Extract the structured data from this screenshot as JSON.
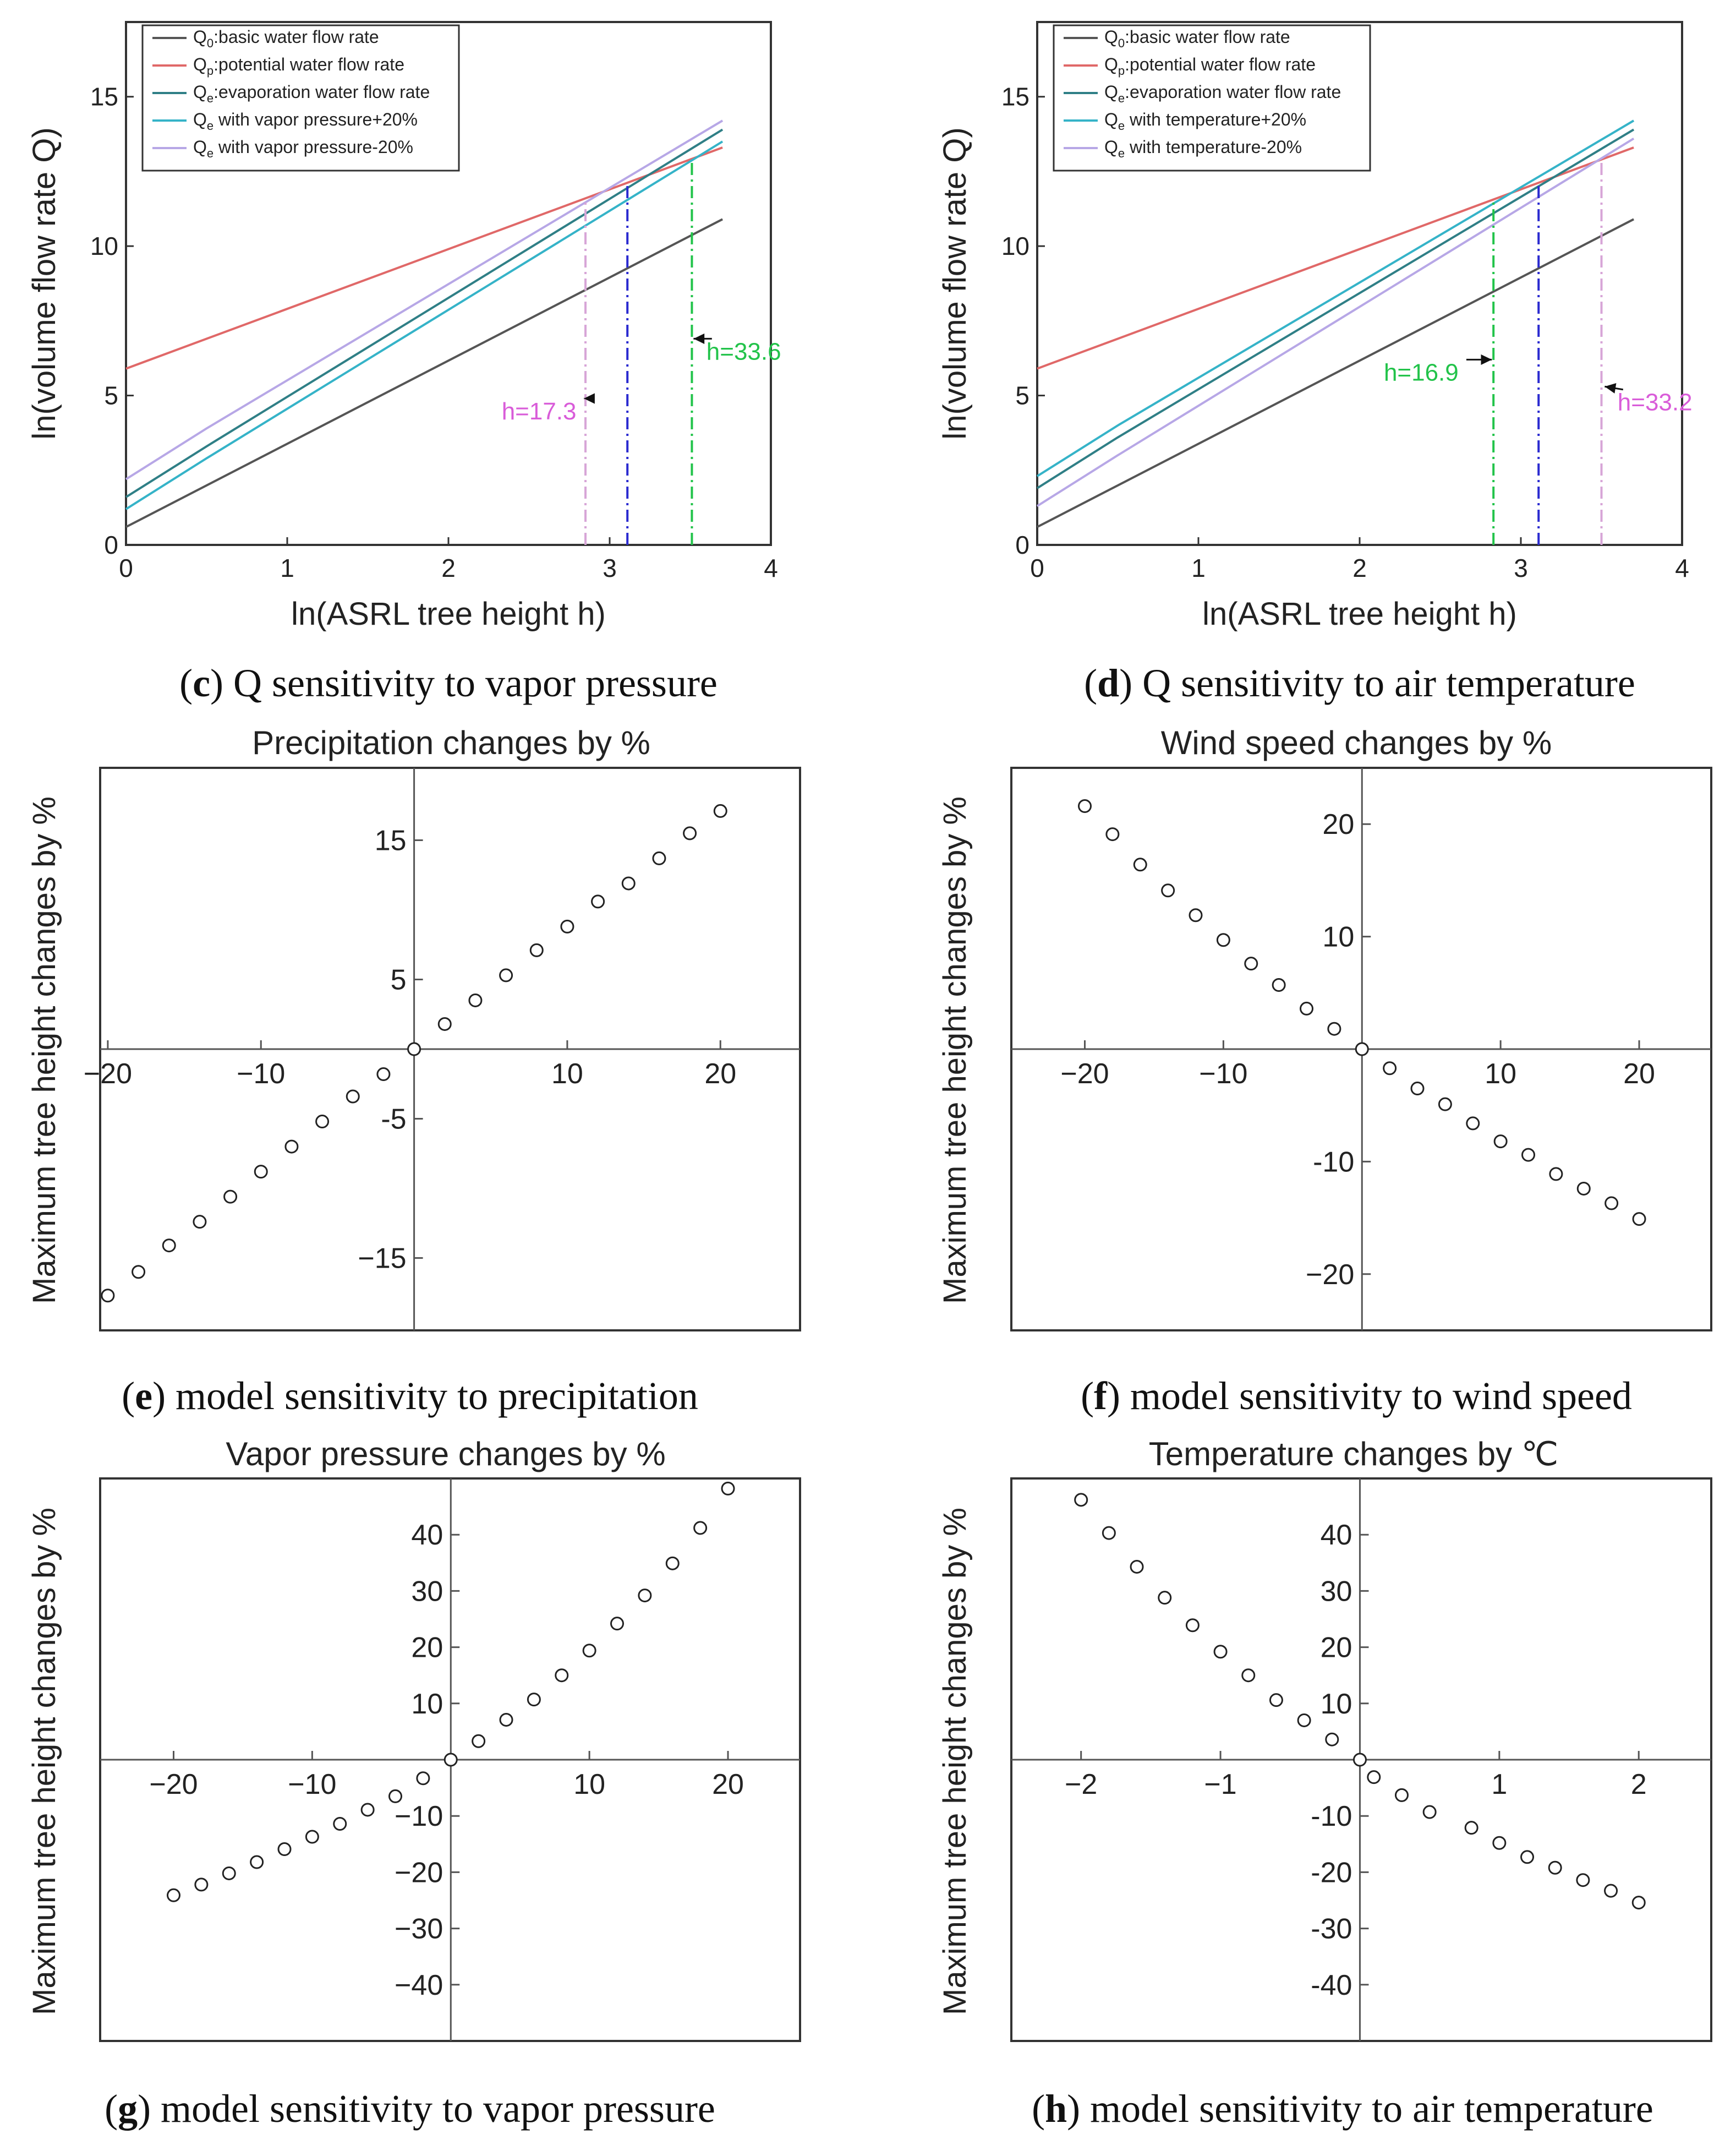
{
  "colors": {
    "q0": "#555555",
    "qp": "#e06868",
    "qe": "#2f7f86",
    "qe_plus": "#35b3c8",
    "qe_minus": "#b7a7e6",
    "green": "#22c34a",
    "blue": "#2a2ad0",
    "magenta": "#d95cd9",
    "pink": "#d7a5d7",
    "axis": "#333333",
    "marker": "#222222"
  },
  "chart_data": [
    {
      "id": "c",
      "type": "line",
      "caption_letter": "c",
      "caption_rest": ") Q sensitivity to vapor pressure",
      "caption_open": "(",
      "xlabel": "ln(ASRL tree height h)",
      "ylabel": "ln(volume flow rate Q)",
      "xlim": [
        0,
        4
      ],
      "ylim": [
        0,
        17.5
      ],
      "xticks": [
        "0",
        "1",
        "2",
        "3",
        "4"
      ],
      "yticks": [
        "0",
        "5",
        "10",
        "15"
      ],
      "legend": [
        {
          "sym": "Q",
          "sub": "0",
          "text": ":basic water flow rate",
          "color_key": "q0"
        },
        {
          "sym": "Q",
          "sub": "p",
          "text": ":potential water flow rate",
          "color_key": "qp"
        },
        {
          "sym": "Q",
          "sub": "e",
          "text": ":evaporation water flow rate",
          "color_key": "qe"
        },
        {
          "sym": "Q",
          "sub": "e",
          "text": " with vapor pressure+20%",
          "color_key": "qe_plus"
        },
        {
          "sym": "Q",
          "sub": "e",
          "text": " with vapor pressure-20%",
          "color_key": "qe_minus"
        }
      ],
      "series": [
        {
          "name": "Q0",
          "color_key": "q0",
          "x": [
            0,
            3.7
          ],
          "y": [
            0.6,
            10.9
          ]
        },
        {
          "name": "Qp",
          "color_key": "qp",
          "x": [
            0,
            3.7
          ],
          "y": [
            5.9,
            13.3
          ]
        },
        {
          "name": "Qe",
          "color_key": "qe",
          "x": [
            0,
            0.5,
            3.7
          ],
          "y": [
            1.6,
            3.3,
            13.9
          ]
        },
        {
          "name": "Qe vapor pressure +20%",
          "color_key": "qe_plus",
          "x": [
            0,
            0.5,
            3.7
          ],
          "y": [
            1.2,
            2.9,
            13.5
          ]
        },
        {
          "name": "Qe vapor pressure -20%",
          "color_key": "qe_minus",
          "x": [
            0,
            0.5,
            3.7
          ],
          "y": [
            2.2,
            3.9,
            14.2
          ]
        }
      ],
      "vlines": [
        {
          "x": 2.85,
          "y": 11.5,
          "color_key": "pink"
        },
        {
          "x": 3.11,
          "y": 12.1,
          "color_key": "blue"
        },
        {
          "x": 3.51,
          "y": 12.8,
          "color_key": "green"
        }
      ],
      "annotations": [
        {
          "text": "h=17.3",
          "color_key": "magenta",
          "x": 2.33,
          "y": 4.2,
          "ax": 2.84,
          "ay": 4.9
        },
        {
          "text": "h=33.6",
          "color_key": "green",
          "x": 3.6,
          "y": 6.2,
          "ax": 3.52,
          "ay": 6.9
        }
      ]
    },
    {
      "id": "d",
      "type": "line",
      "caption_letter": "d",
      "caption_rest": ") Q sensitivity to air temperature",
      "caption_open": "(",
      "xlabel": "ln(ASRL tree height h)",
      "ylabel": "ln(volume flow rate Q)",
      "xlim": [
        0,
        4
      ],
      "ylim": [
        0,
        17.5
      ],
      "xticks": [
        "0",
        "1",
        "2",
        "3",
        "4"
      ],
      "yticks": [
        "0",
        "5",
        "10",
        "15"
      ],
      "legend": [
        {
          "sym": "Q",
          "sub": "0",
          "text": ":basic water flow rate",
          "color_key": "q0"
        },
        {
          "sym": "Q",
          "sub": "p",
          "text": ":potential water flow rate",
          "color_key": "qp"
        },
        {
          "sym": "Q",
          "sub": "e",
          "text": ":evaporation water flow rate",
          "color_key": "qe"
        },
        {
          "sym": "Q",
          "sub": "e",
          "text": " with temperature+20%",
          "color_key": "qe_plus"
        },
        {
          "sym": "Q",
          "sub": "e",
          "text": " with temperature-20%",
          "color_key": "qe_minus"
        }
      ],
      "series": [
        {
          "name": "Q0",
          "color_key": "q0",
          "x": [
            0,
            3.7
          ],
          "y": [
            0.6,
            10.9
          ]
        },
        {
          "name": "Qp",
          "color_key": "qp",
          "x": [
            0,
            3.7
          ],
          "y": [
            5.9,
            13.3
          ]
        },
        {
          "name": "Qe",
          "color_key": "qe",
          "x": [
            0,
            0.5,
            3.7
          ],
          "y": [
            1.9,
            3.6,
            13.9
          ]
        },
        {
          "name": "Qe temperature +20%",
          "color_key": "qe_plus",
          "x": [
            0,
            0.5,
            3.7
          ],
          "y": [
            2.3,
            4.0,
            14.2
          ]
        },
        {
          "name": "Qe temperature -20%",
          "color_key": "qe_minus",
          "x": [
            0,
            0.5,
            3.7
          ],
          "y": [
            1.3,
            3.0,
            13.6
          ]
        }
      ],
      "vlines": [
        {
          "x": 2.83,
          "y": 11.5,
          "color_key": "green"
        },
        {
          "x": 3.11,
          "y": 12.1,
          "color_key": "blue"
        },
        {
          "x": 3.5,
          "y": 12.9,
          "color_key": "pink"
        }
      ],
      "annotations": [
        {
          "text": "h=16.9",
          "color_key": "green",
          "x": 2.15,
          "y": 5.5,
          "ax": 2.82,
          "ay": 6.2
        },
        {
          "text": "h=33.2",
          "color_key": "magenta",
          "x": 3.6,
          "y": 4.5,
          "ax": 3.52,
          "ay": 5.3
        }
      ]
    },
    {
      "id": "e",
      "type": "scatter",
      "caption_letter": "e",
      "caption_rest": ") model sensitivity to precipitation",
      "caption_open": "(",
      "title": "Precipitation changes by %",
      "ylabel": "Maximum tree height changes by %",
      "xlim": [
        -20.5,
        25.2
      ],
      "ylim": [
        -20.2,
        20.2
      ],
      "xticks": [
        -20,
        -10,
        10,
        20
      ],
      "xtick_labels": [
        "−20",
        "−10",
        "10",
        "20"
      ],
      "yticks": [
        15,
        5,
        -5,
        -15
      ],
      "ytick_labels": [
        "15",
        "5",
        "-5",
        "−15"
      ],
      "x": [
        -20,
        -18,
        -16,
        -14,
        -12,
        -10,
        -8,
        -6,
        -4,
        -2,
        0,
        2,
        4,
        6,
        8,
        10,
        12,
        14,
        16,
        18,
        20
      ],
      "y": [
        -17.7,
        -16.0,
        -14.1,
        -12.4,
        -10.6,
        -8.8,
        -7.0,
        -5.2,
        -3.4,
        -1.8,
        0,
        1.8,
        3.5,
        5.3,
        7.1,
        8.8,
        10.6,
        11.9,
        13.7,
        15.5,
        17.1
      ]
    },
    {
      "id": "f",
      "type": "scatter",
      "caption_letter": "f",
      "caption_rest": ") model sensitivity to wind speed",
      "caption_open": "(",
      "title": "Wind speed changes by %",
      "ylabel": "Maximum tree height changes by %",
      "xlim": [
        -25.3,
        25.2
      ],
      "ylim": [
        -25,
        25
      ],
      "xticks": [
        -20,
        -10,
        10,
        20
      ],
      "xtick_labels": [
        "−20",
        "−10",
        "10",
        "20"
      ],
      "yticks": [
        20,
        10,
        -10,
        -20
      ],
      "ytick_labels": [
        "20",
        "10",
        "-10",
        "−20"
      ],
      "x": [
        -20,
        -18,
        -16,
        -14,
        -12,
        -10,
        -8,
        -6,
        -4,
        -2,
        0,
        2,
        4,
        6,
        8,
        10,
        12,
        14,
        16,
        18,
        20
      ],
      "y": [
        21.6,
        19.1,
        16.4,
        14.1,
        11.9,
        9.7,
        7.6,
        5.7,
        3.6,
        1.8,
        0,
        -1.7,
        -3.5,
        -4.9,
        -6.6,
        -8.2,
        -9.4,
        -11.1,
        -12.4,
        -13.7,
        -15.1
      ]
    },
    {
      "id": "g",
      "type": "scatter",
      "caption_letter": "g",
      "caption_rest": ") model sensitivity to vapor pressure",
      "caption_open": "(",
      "title": "Vapor pressure changes by %",
      "ylabel": "Maximum tree height changes by %",
      "xlim": [
        -25.3,
        25.2
      ],
      "ylim": [
        -50,
        50
      ],
      "xticks": [
        -20,
        -10,
        10,
        20
      ],
      "xtick_labels": [
        "−20",
        "−10",
        "10",
        "20"
      ],
      "yticks": [
        40,
        30,
        20,
        10,
        -10,
        -20,
        -30,
        -40
      ],
      "ytick_labels": [
        "40",
        "30",
        "20",
        "10",
        "−10",
        "−20",
        "−30",
        "−40"
      ],
      "x": [
        -20,
        -18,
        -16,
        -14,
        -12,
        -10,
        -8,
        -6,
        -4,
        -2,
        0,
        2,
        4,
        6,
        8,
        10,
        12,
        14,
        16,
        18,
        20
      ],
      "y": [
        -24.1,
        -22.2,
        -20.2,
        -18.2,
        -15.9,
        -13.7,
        -11.4,
        -8.9,
        -6.5,
        -3.3,
        0,
        3.3,
        7.1,
        10.7,
        15.0,
        19.4,
        24.2,
        29.2,
        34.9,
        41.2,
        48.2
      ]
    },
    {
      "id": "h",
      "type": "scatter",
      "caption_letter": "h",
      "caption_rest": ") model sensitivity to air temperature",
      "caption_open": "(",
      "title": "Temperature changes by ℃",
      "ylabel": "Maximum tree height changes by %",
      "xlim": [
        -2.5,
        2.52
      ],
      "ylim": [
        -50,
        50
      ],
      "xticks": [
        -2,
        -1,
        1,
        2
      ],
      "xtick_labels": [
        "−2",
        "−1",
        "1",
        "2"
      ],
      "yticks": [
        40,
        30,
        20,
        10,
        -10,
        -20,
        -30,
        -40
      ],
      "ytick_labels": [
        "40",
        "30",
        "20",
        "10",
        "-10",
        "-20",
        "-30",
        "-40"
      ],
      "x": [
        -2.0,
        -1.8,
        -1.6,
        -1.4,
        -1.2,
        -1.0,
        -0.8,
        -0.6,
        -0.4,
        -0.2,
        0,
        0.1,
        0.3,
        0.5,
        0.8,
        1.0,
        1.2,
        1.4,
        1.6,
        1.8,
        2.0
      ],
      "y": [
        46.2,
        40.3,
        34.3,
        28.8,
        23.9,
        19.2,
        15.0,
        10.6,
        7.0,
        3.6,
        0,
        -3.1,
        -6.3,
        -9.3,
        -12.1,
        -14.8,
        -17.3,
        -19.2,
        -21.4,
        -23.3,
        -25.4
      ]
    }
  ]
}
